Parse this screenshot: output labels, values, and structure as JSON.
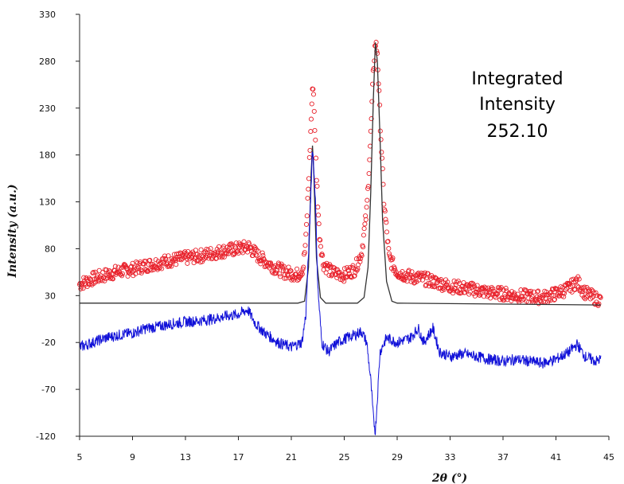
{
  "chart_data": {
    "type": "scatter",
    "title": "",
    "xlabel": "2θ (°)",
    "ylabel": "Intensity (a.u.)",
    "xlim": [
      5,
      45
    ],
    "ylim": [
      -120,
      330
    ],
    "xticks": [
      "5",
      "9",
      "13",
      "17",
      "21",
      "25",
      "29",
      "33",
      "37",
      "41",
      "45"
    ],
    "yticks": [
      "330",
      "280",
      "230",
      "180",
      "130",
      "80",
      "30",
      "-20",
      "-70",
      "-120"
    ],
    "grid": false,
    "annotation": [
      "Integrated",
      "Intensity",
      "252.10"
    ],
    "colors": {
      "observed": "#e8202a",
      "calculated": "#333333",
      "difference": "#1010d8"
    },
    "series": [
      {
        "style": "circle-markers",
        "color": "#e8202a",
        "points": [
          [
            5.0,
            42
          ],
          [
            6,
            48
          ],
          [
            7,
            52
          ],
          [
            8,
            56
          ],
          [
            9,
            58
          ],
          [
            10,
            62
          ],
          [
            11,
            65
          ],
          [
            12,
            68
          ],
          [
            13,
            70
          ],
          [
            14,
            72
          ],
          [
            15,
            75
          ],
          [
            16,
            78
          ],
          [
            17,
            80
          ],
          [
            17.8,
            82
          ],
          [
            18.5,
            72
          ],
          [
            19.5,
            62
          ],
          [
            20.5,
            55
          ],
          [
            21.5,
            52
          ],
          [
            21.9,
            60
          ],
          [
            22.1,
            90
          ],
          [
            22.3,
            150
          ],
          [
            22.45,
            200
          ],
          [
            22.55,
            235
          ],
          [
            22.65,
            258
          ],
          [
            22.75,
            220
          ],
          [
            22.9,
            160
          ],
          [
            23.1,
            100
          ],
          [
            23.4,
            65
          ],
          [
            24,
            55
          ],
          [
            25,
            52
          ],
          [
            25.8,
            58
          ],
          [
            26.3,
            75
          ],
          [
            26.7,
            120
          ],
          [
            27.0,
            200
          ],
          [
            27.2,
            270
          ],
          [
            27.35,
            300
          ],
          [
            27.5,
            290
          ],
          [
            27.7,
            220
          ],
          [
            28.0,
            130
          ],
          [
            28.4,
            70
          ],
          [
            29,
            55
          ],
          [
            30,
            50
          ],
          [
            31,
            48
          ],
          [
            32,
            44
          ],
          [
            33,
            40
          ],
          [
            34,
            38
          ],
          [
            35,
            36
          ],
          [
            36,
            33
          ],
          [
            37,
            32
          ],
          [
            38,
            30
          ],
          [
            39,
            29
          ],
          [
            40,
            28
          ],
          [
            41,
            32
          ],
          [
            42,
            38
          ],
          [
            42.6,
            45
          ],
          [
            43.2,
            33
          ],
          [
            44,
            27
          ],
          [
            44.4,
            25
          ]
        ]
      },
      {
        "style": "line",
        "color": "#333333",
        "points": [
          [
            5.0,
            22
          ],
          [
            21.5,
            22
          ],
          [
            22.0,
            24
          ],
          [
            22.3,
            60
          ],
          [
            22.5,
            160
          ],
          [
            22.6,
            190
          ],
          [
            22.7,
            160
          ],
          [
            22.9,
            70
          ],
          [
            23.2,
            28
          ],
          [
            23.6,
            22
          ],
          [
            26.0,
            22
          ],
          [
            26.5,
            28
          ],
          [
            26.8,
            60
          ],
          [
            27.0,
            140
          ],
          [
            27.2,
            240
          ],
          [
            27.35,
            300
          ],
          [
            27.5,
            280
          ],
          [
            27.7,
            200
          ],
          [
            27.9,
            110
          ],
          [
            28.2,
            45
          ],
          [
            28.6,
            24
          ],
          [
            29.0,
            22
          ],
          [
            44.4,
            20
          ]
        ]
      },
      {
        "style": "line",
        "color": "#1010d8",
        "points": [
          [
            5.0,
            -25
          ],
          [
            6,
            -20
          ],
          [
            7,
            -15
          ],
          [
            8,
            -12
          ],
          [
            9,
            -10
          ],
          [
            10,
            -5
          ],
          [
            11,
            -3
          ],
          [
            12,
            0
          ],
          [
            13,
            2
          ],
          [
            14,
            3
          ],
          [
            15,
            5
          ],
          [
            16,
            8
          ],
          [
            17,
            10
          ],
          [
            17.7,
            15
          ],
          [
            18.3,
            0
          ],
          [
            19,
            -10
          ],
          [
            20,
            -20
          ],
          [
            21,
            -25
          ],
          [
            21.8,
            -20
          ],
          [
            22.1,
            10
          ],
          [
            22.4,
            110
          ],
          [
            22.6,
            190
          ],
          [
            22.8,
            140
          ],
          [
            23.0,
            40
          ],
          [
            23.3,
            -20
          ],
          [
            23.8,
            -30
          ],
          [
            24.5,
            -20
          ],
          [
            25.2,
            -15
          ],
          [
            25.8,
            -12
          ],
          [
            26.3,
            -8
          ],
          [
            26.7,
            -20
          ],
          [
            27.0,
            -60
          ],
          [
            27.2,
            -100
          ],
          [
            27.35,
            -115
          ],
          [
            27.5,
            -80
          ],
          [
            27.7,
            -30
          ],
          [
            28.2,
            -15
          ],
          [
            29,
            -20
          ],
          [
            30,
            -15
          ],
          [
            30.6,
            -5
          ],
          [
            31,
            -20
          ],
          [
            31.7,
            -5
          ],
          [
            32.2,
            -30
          ],
          [
            33,
            -35
          ],
          [
            34,
            -32
          ],
          [
            35,
            -35
          ],
          [
            36,
            -38
          ],
          [
            37,
            -40
          ],
          [
            38,
            -38
          ],
          [
            39,
            -40
          ],
          [
            40,
            -42
          ],
          [
            41,
            -38
          ],
          [
            42,
            -30
          ],
          [
            42.6,
            -22
          ],
          [
            43.2,
            -35
          ],
          [
            44,
            -40
          ],
          [
            44.4,
            -38
          ]
        ]
      }
    ]
  }
}
